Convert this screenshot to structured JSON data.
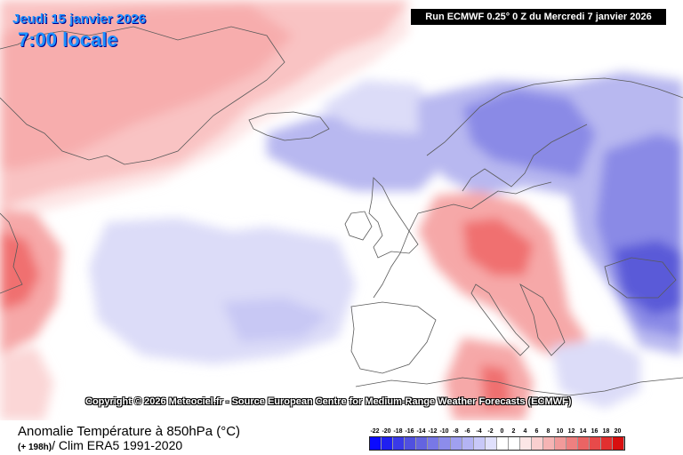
{
  "header": {
    "date": "Jeudi 15 janvier 2026",
    "local_time": "7:00 locale",
    "run_info": "Run ECMWF 0.25° 0 Z du Mercredi 7 janvier 2026"
  },
  "map": {
    "copyright": "Copyright © 2026 Meteociel.fr - Source European Centre for Medium-Range Weather Forecasts (ECMWF)"
  },
  "footer": {
    "title": "Anomalie Température à 850hPa (°C)",
    "hours": "(+ 198h)",
    "clim": "/ Clim ERA5 1991-2020"
  },
  "legend": {
    "labels": [
      "-22",
      "-20",
      "-18",
      "-16",
      "-14",
      "-12",
      "-10",
      "-8",
      "-6",
      "-4",
      "-2",
      "0",
      "2",
      "4",
      "6",
      "8",
      "10",
      "12",
      "14",
      "16",
      "18",
      "20"
    ],
    "colors": [
      "#0a0aff",
      "#2020f0",
      "#3a3ae8",
      "#5050e0",
      "#6464e0",
      "#7878e6",
      "#8c8ceb",
      "#a0a0f0",
      "#b4b4f4",
      "#c8c8f8",
      "#e0e0fc",
      "#ffffff",
      "#ffffff",
      "#fce6e6",
      "#f9cfcf",
      "#f5b4b4",
      "#f19a9a",
      "#ee8080",
      "#ea6464",
      "#e84a4a",
      "#e23030",
      "#d81010"
    ]
  },
  "colors": {
    "warm_strong": "#f07070",
    "warm": "#f6a8a8",
    "warm_light": "#fbd6d6",
    "cold_light": "#dcdcf8",
    "cold": "#b8b8f0",
    "cold_strong": "#8a8ae6",
    "cold_deep": "#5a5ad8",
    "coast": "#555555"
  }
}
